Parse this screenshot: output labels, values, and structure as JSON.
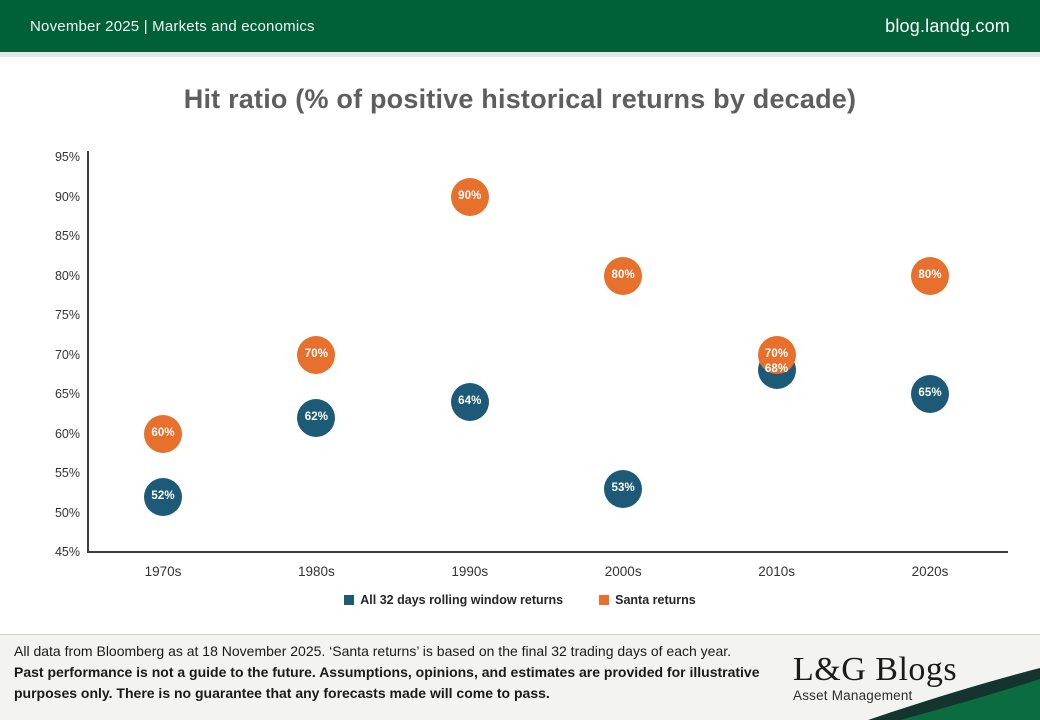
{
  "header": {
    "left": "November 2025 | Markets and economics",
    "right": "blog.landg.com",
    "bg_color": "#006038"
  },
  "title": "Hit ratio (% of positive historical returns by decade)",
  "chart_data": {
    "type": "scatter",
    "title": "Hit ratio (% of positive historical returns by decade)",
    "categories": [
      "1970s",
      "1980s",
      "1990s",
      "2000s",
      "2010s",
      "2020s"
    ],
    "series": [
      {
        "name": "All 32 days rolling window returns",
        "color": "#1c5a78",
        "values": [
          52,
          62,
          64,
          53,
          68,
          65
        ]
      },
      {
        "name": "Santa returns",
        "color": "#e7702d",
        "values": [
          60,
          70,
          90,
          80,
          70,
          80
        ]
      }
    ],
    "value_suffix": "%",
    "xlabel": "",
    "ylabel": "",
    "ylim": [
      45,
      95
    ],
    "ytick_step": 5,
    "grid": false,
    "legend_position": "bottom",
    "point_labels": "inside"
  },
  "footer": {
    "source_line": "All data from Bloomberg as at 18 November 2025. ‘Santa returns’ is based on the final 32 trading days of each year.",
    "disclaimer": "Past performance is not a guide to the future. Assumptions, opinions, and estimates are provided for illustrative purposes only. There is no guarantee that any forecasts made will come to pass."
  },
  "logo": {
    "name": "L&G Blogs",
    "subtitle": "Asset Management"
  },
  "colors": {
    "header_green": "#006038",
    "swoosh_green": "#0b6b41",
    "swoosh_dark": "#15342e",
    "footer_bg": "#f3f3f2",
    "title_gray": "#5e5e5e"
  }
}
